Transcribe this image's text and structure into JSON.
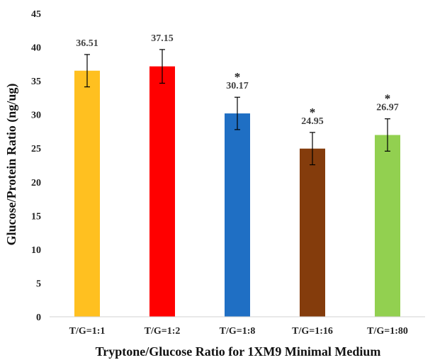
{
  "chart_data": {
    "type": "bar",
    "title": "",
    "xlabel": "Tryptone/Glucose Ratio for 1XM9 Minimal Medium",
    "ylabel": "Glucose/Protein  Ratio (ng/ug)",
    "ylim": [
      0,
      45
    ],
    "yticks": [
      0,
      5,
      10,
      15,
      20,
      25,
      30,
      35,
      40,
      45
    ],
    "categories": [
      "T/G=1:1",
      "T/G=1:2",
      "T/G=1:8",
      "T/G=1:16",
      "T/G=1:80"
    ],
    "values": [
      36.51,
      37.15,
      30.17,
      24.95,
      26.97
    ],
    "value_labels": [
      "36.51",
      "37.15",
      "30.17",
      "24.95",
      "26.97"
    ],
    "error": [
      2.4,
      2.5,
      2.4,
      2.4,
      2.4
    ],
    "significance": [
      "",
      "",
      "*",
      "*",
      "*"
    ],
    "colors": [
      "#FFC020",
      "#FF0000",
      "#1F6FC4",
      "#843C0C",
      "#92D050"
    ],
    "grid": false,
    "legend": "none"
  }
}
